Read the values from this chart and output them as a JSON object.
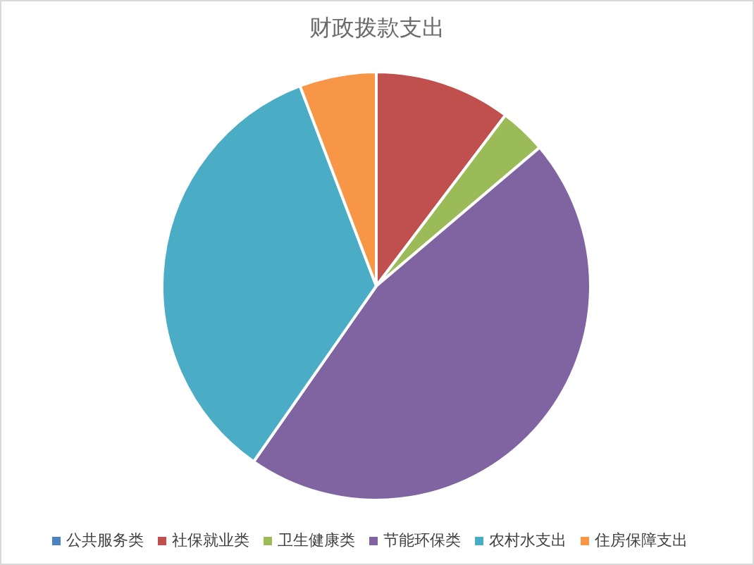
{
  "chart_data": {
    "type": "pie",
    "title": "财政拨款支出",
    "categories": [
      "公共服务类",
      "社保就业类",
      "卫生健康类",
      "节能环保类",
      "农村水支出",
      "住房保障支出"
    ],
    "values": [
      0,
      10.3,
      3.5,
      45.9,
      34.5,
      5.8
    ],
    "colors": [
      "#4f81bd",
      "#c0504d",
      "#9bbb59",
      "#8064a2",
      "#4bacc6",
      "#f79646"
    ],
    "legend": "bottom"
  }
}
